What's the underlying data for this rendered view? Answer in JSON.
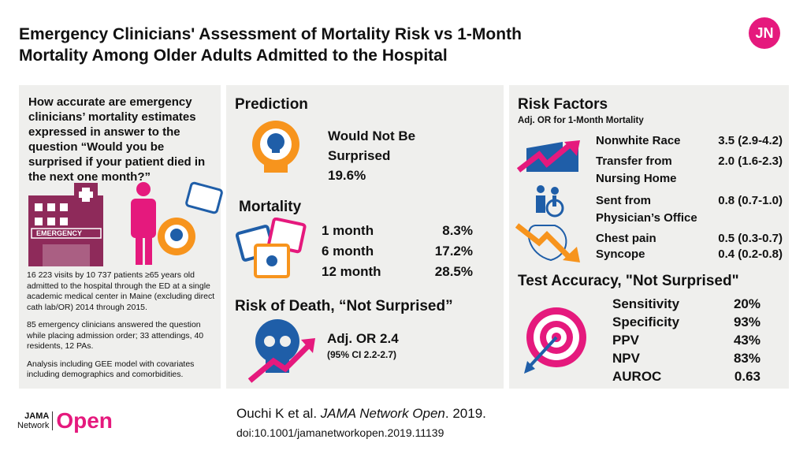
{
  "title": [
    "Emergency Clinicians' Assessment of Mortality Risk vs 1-Month",
    "Mortality Among Older Adults Admitted to the Hospital"
  ],
  "logo_jn": "JN",
  "left": {
    "question": "How accurate are emergency clinicians’ mortality estimates expressed in answer to the question “Would you be surprised if your patient died in the next one month?”",
    "emergency_sign": "EMERGENCY",
    "notes": [
      "16 223 visits by 10 737 patients  ≥65 years old admitted to the hospital through the ED at a single academic medical center in Maine (excluding direct cath lab/OR) 2014 through 2015.",
      "85 emergency clinicians answered the question while placing admission order; 33 attendings, 40 residents, 12 PAs.",
      "Analysis including GEE  model with covariates including demographics and comorbidities."
    ]
  },
  "middle": {
    "prediction_heading": "Prediction",
    "prediction_label": [
      "Would Not Be",
      "Surprised"
    ],
    "prediction_value": "19.6%",
    "mortality_heading": "Mortality",
    "mortality": [
      {
        "period": "1 month",
        "value": "8.3%"
      },
      {
        "period": "6 month",
        "value": "17.2%"
      },
      {
        "period": "12 month",
        "value": "28.5%"
      }
    ],
    "risk_heading": "Risk of Death, “Not Surprised”",
    "risk_or": "Adj. OR 2.4",
    "risk_ci": "(95% CI 2.2-2.7)"
  },
  "right": {
    "heading": "Risk Factors",
    "subheading": "Adj. OR for 1-Month Mortality",
    "factors": [
      {
        "label": "Nonwhite Race",
        "value": "3.5 (2.9-4.2)"
      },
      {
        "label": "Transfer from",
        "label2": "Nursing Home",
        "value": "2.0 (1.6-2.3)"
      },
      {
        "label": "Sent from",
        "label2": "Physician’s Office",
        "value": "0.8 (0.7-1.0)"
      },
      {
        "label": "Chest pain",
        "value": "0.5 (0.3-0.7)"
      },
      {
        "label": "Syncope",
        "value": "0.4 (0.2-0.8)"
      }
    ],
    "accuracy_heading": "Test Accuracy, \"Not Surprised\"",
    "accuracy": [
      {
        "label": "Sensitivity",
        "value": "20%"
      },
      {
        "label": "Specificity",
        "value": "93%"
      },
      {
        "label": "PPV",
        "value": "43%"
      },
      {
        "label": "NPV",
        "value": "83%"
      },
      {
        "label": "AUROC",
        "value": "0.63"
      }
    ]
  },
  "footer": {
    "logo_top": "JAMA",
    "logo_bottom": "Network",
    "logo_open": "Open",
    "citation_authors": "Ouchi K et al.",
    "citation_journal": "JAMA Network Open",
    "citation_year": ". 2019.",
    "doi": "doi:10.1001/jamanetworkopen.2019.11139"
  },
  "colors": {
    "magenta": "#e5197d",
    "orange": "#f7941d",
    "blue": "#1f5ea8",
    "maroon": "#8e2a5a",
    "panel": "#efefed"
  }
}
